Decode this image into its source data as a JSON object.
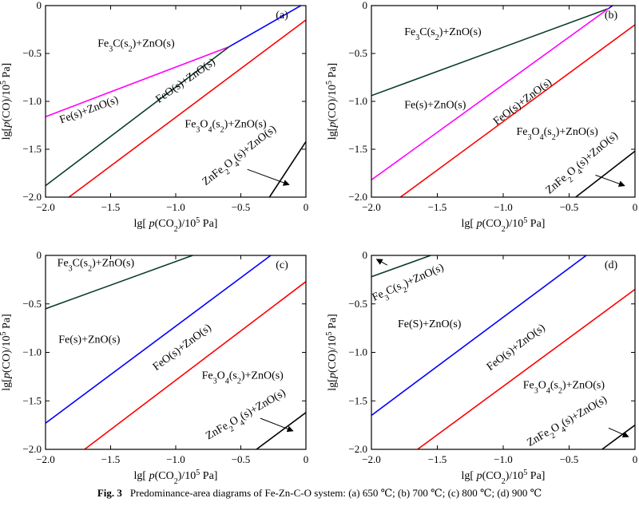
{
  "caption": {
    "label": "Fig. 3",
    "text": "Predominance-area diagrams of Fe-Zn-C-O system: (a) 650 ℃; (b) 700 ℃; (c) 800 ℃; (d) 900 ℃"
  },
  "colors": {
    "magenta": "#ff00ff",
    "dark_green": "#0b3d2a",
    "blue": "#0000ff",
    "red": "#ff0000",
    "black": "#000000"
  },
  "chart_data": [
    {
      "panel": "(a)",
      "type": "line",
      "xlabel": "lg[p(CO2)/10^5 Pa]",
      "ylabel": "lg[p(CO)/10^5 Pa]",
      "xlim": [
        -2.0,
        0
      ],
      "ylim": [
        -2.0,
        0
      ],
      "xticks": [
        "−2.0",
        "−1.5",
        "−1.0",
        "−0.5",
        "0"
      ],
      "yticks": [
        "0",
        "−0.5",
        "−1.0",
        "−1.5",
        "−2.0"
      ],
      "series": [
        {
          "color": "magenta",
          "x": [
            -2.0,
            -0.59
          ],
          "y": [
            -1.16,
            -0.43
          ]
        },
        {
          "color": "dark_green",
          "x": [
            -2.0,
            -0.59
          ],
          "y": [
            -1.88,
            -0.43
          ]
        },
        {
          "color": "blue",
          "x": [
            -0.59,
            0.0
          ],
          "y": [
            -0.43,
            0.03
          ]
        },
        {
          "color": "red",
          "x": [
            -1.82,
            0.0
          ],
          "y": [
            -2.0,
            -0.15
          ]
        },
        {
          "color": "black",
          "x": [
            -0.28,
            0.0
          ],
          "y": [
            -2.0,
            -1.42
          ]
        }
      ],
      "regions": [
        {
          "x": -1.6,
          "y": -0.43,
          "parts": [
            [
              "Fe",
              ""
            ],
            [
              "3",
              "sub"
            ],
            [
              "C(s",
              ""
            ],
            [
              "2",
              "sub"
            ],
            [
              ")+ZnO(s)",
              ""
            ]
          ],
          "rotate": 0
        },
        {
          "x": -1.88,
          "y": -1.23,
          "parts": [
            [
              "Fe(s)+ZnO(s)",
              ""
            ]
          ],
          "rotate": -20
        },
        {
          "x": -1.13,
          "y": -1.02,
          "parts": [
            [
              "FeO(s)+ZnO(s)",
              ""
            ]
          ],
          "rotate": -35
        },
        {
          "x": -0.93,
          "y": -1.27,
          "parts": [
            [
              "Fe",
              ""
            ],
            [
              "3",
              "sub"
            ],
            [
              "O",
              ""
            ],
            [
              "4",
              "sub"
            ],
            [
              "(s",
              ""
            ],
            [
              "2",
              "sub"
            ],
            [
              ")+ZnO(s)",
              ""
            ]
          ],
          "rotate": 0
        },
        {
          "x": -0.77,
          "y": -1.88,
          "parts": [
            [
              "ZnFe",
              ""
            ],
            [
              "2",
              "sub"
            ],
            [
              "O",
              ""
            ],
            [
              "4",
              "sub"
            ],
            [
              "(s)+ZnO(s)",
              ""
            ]
          ],
          "rotate": -38
        }
      ],
      "arrow": {
        "from": [
          -0.45,
          -1.71
        ],
        "to": [
          -0.13,
          -1.87
        ]
      }
    },
    {
      "panel": "(b)",
      "type": "line",
      "xlabel": "lg[p(CO2)/10^5 Pa]",
      "ylabel": "lg[p(CO)/10^5 Pa]",
      "xlim": [
        -2.0,
        0
      ],
      "ylim": [
        -2.0,
        0
      ],
      "xticks": [
        "−2.0",
        "−1.5",
        "−1.0",
        "−0.5",
        "0"
      ],
      "yticks": [
        "0",
        "−0.5",
        "−1.0",
        "−1.5",
        "−2.0"
      ],
      "series": [
        {
          "color": "dark_green",
          "x": [
            -2.0,
            -0.2
          ],
          "y": [
            -0.94,
            -0.03
          ]
        },
        {
          "color": "magenta",
          "x": [
            -2.0,
            -0.2
          ],
          "y": [
            -1.82,
            -0.03
          ]
        },
        {
          "color": "blue",
          "x": [
            -0.2,
            -0.17
          ],
          "y": [
            -0.03,
            0.0
          ]
        },
        {
          "color": "red",
          "x": [
            -1.78,
            0.0
          ],
          "y": [
            -2.0,
            -0.2
          ]
        },
        {
          "color": "black",
          "x": [
            -0.45,
            0.0
          ],
          "y": [
            -2.0,
            -1.52
          ]
        }
      ],
      "regions": [
        {
          "x": -1.75,
          "y": -0.31,
          "parts": [
            [
              "Fe",
              ""
            ],
            [
              "3",
              "sub"
            ],
            [
              "C(s",
              ""
            ],
            [
              "2",
              "sub"
            ],
            [
              ")+ZnO(s)",
              ""
            ]
          ],
          "rotate": 0
        },
        {
          "x": -1.75,
          "y": -1.07,
          "parts": [
            [
              "Fe(s)+ZnO(s)",
              ""
            ]
          ],
          "rotate": 0
        },
        {
          "x": -1.05,
          "y": -1.25,
          "parts": [
            [
              "FeO(s)+ZnO(s)",
              ""
            ]
          ],
          "rotate": -37
        },
        {
          "x": -0.9,
          "y": -1.35,
          "parts": [
            [
              "Fe",
              ""
            ],
            [
              "3",
              "sub"
            ],
            [
              "O",
              ""
            ],
            [
              "4",
              "sub"
            ],
            [
              "(s",
              ""
            ],
            [
              "2",
              "sub"
            ],
            [
              ")+ZnO(s)",
              ""
            ]
          ],
          "rotate": 0
        },
        {
          "x": -0.65,
          "y": -1.97,
          "parts": [
            [
              "ZnFe",
              ""
            ],
            [
              "2",
              "sub"
            ],
            [
              "O",
              ""
            ],
            [
              "4",
              "sub"
            ],
            [
              "(s)+ZnO(s)",
              ""
            ]
          ],
          "rotate": -40
        }
      ],
      "arrow": {
        "from": [
          -0.3,
          -1.77
        ],
        "to": [
          -0.08,
          -1.88
        ]
      }
    },
    {
      "panel": "(c)",
      "type": "line",
      "xlabel": "lg[p(CO2)/10^5 Pa]",
      "ylabel": "lg[p(CO)/10^5 Pa]",
      "xlim": [
        -2.0,
        0
      ],
      "ylim": [
        -2.0,
        0
      ],
      "xticks": [
        "−2.0",
        "−1.5",
        "−1.0",
        "−0.5",
        "0"
      ],
      "yticks": [
        "0",
        "−0.5",
        "−1.0",
        "−1.5",
        "−2.0"
      ],
      "series": [
        {
          "color": "dark_green",
          "x": [
            -2.0,
            -0.87
          ],
          "y": [
            -0.55,
            0.0
          ]
        },
        {
          "color": "blue",
          "x": [
            -2.0,
            -0.27
          ],
          "y": [
            -1.73,
            0.0
          ]
        },
        {
          "color": "red",
          "x": [
            -1.7,
            0.0
          ],
          "y": [
            -2.0,
            -0.27
          ]
        },
        {
          "color": "black",
          "x": [
            -0.38,
            0.0
          ],
          "y": [
            -2.0,
            -1.62
          ]
        }
      ],
      "regions": [
        {
          "x": -1.91,
          "y": -0.11,
          "parts": [
            [
              "Fe",
              ""
            ],
            [
              "3",
              "sub"
            ],
            [
              "C(s",
              ""
            ],
            [
              "2",
              "sub"
            ],
            [
              ")+ZnO(s)",
              ""
            ]
          ],
          "rotate": 0
        },
        {
          "x": -1.9,
          "y": -0.9,
          "parts": [
            [
              "Fe(s)+ZnO(s)",
              ""
            ]
          ],
          "rotate": 0
        },
        {
          "x": -1.15,
          "y": -1.19,
          "parts": [
            [
              "FeO(s)+ZnO(s)",
              ""
            ]
          ],
          "rotate": -37
        },
        {
          "x": -0.8,
          "y": -1.27,
          "parts": [
            [
              "Fe",
              ""
            ],
            [
              "3",
              "sub"
            ],
            [
              "O",
              ""
            ],
            [
              "4",
              "sub"
            ],
            [
              "(s",
              ""
            ],
            [
              "2",
              "sub"
            ],
            [
              ")+ZnO(s)",
              ""
            ]
          ],
          "rotate": 0
        },
        {
          "x": -0.75,
          "y": -1.9,
          "parts": [
            [
              "ZnFe",
              ""
            ],
            [
              "2",
              "sub"
            ],
            [
              "O",
              ""
            ],
            [
              "4",
              "sub"
            ],
            [
              "(s)+ZnO(s)",
              ""
            ]
          ],
          "rotate": -30
        }
      ],
      "arrow": {
        "from": [
          -0.35,
          -1.68
        ],
        "to": [
          -0.1,
          -1.81
        ]
      }
    },
    {
      "panel": "(d)",
      "type": "line",
      "xlabel": "lg[p(CO2)/10^5 Pa]",
      "ylabel": "lg[p(CO)/10^5 Pa]",
      "xlim": [
        -2.0,
        0
      ],
      "ylim": [
        -2.0,
        0
      ],
      "xticks": [
        "−2.0",
        "−1.5",
        "−1.0",
        "−0.5",
        "0"
      ],
      "yticks": [
        "0",
        "−0.5",
        "−1.0",
        "−1.5",
        "−2.0"
      ],
      "series": [
        {
          "color": "dark_green",
          "x": [
            -2.0,
            -1.55
          ],
          "y": [
            -0.22,
            0.0
          ]
        },
        {
          "color": "blue",
          "x": [
            -2.0,
            -0.37
          ],
          "y": [
            -1.65,
            0.0
          ]
        },
        {
          "color": "red",
          "x": [
            -1.65,
            0.0
          ],
          "y": [
            -2.0,
            -0.35
          ]
        },
        {
          "color": "black",
          "x": [
            -0.25,
            0.0
          ],
          "y": [
            -2.0,
            -1.75
          ]
        }
      ],
      "regions": [
        {
          "x": -1.98,
          "y": -0.47,
          "parts": [
            [
              "Fe",
              ""
            ],
            [
              "3",
              "sub"
            ],
            [
              "C(s",
              ""
            ],
            [
              "2",
              "sub"
            ],
            [
              ")+ZnO(s)",
              ""
            ]
          ],
          "rotate": -24
        },
        {
          "x": -1.8,
          "y": -0.74,
          "parts": [
            [
              "Fe(S)+ZnO(s)",
              ""
            ]
          ],
          "rotate": 0
        },
        {
          "x": -1.1,
          "y": -1.19,
          "parts": [
            [
              "FeO(s)+ZnO(s)",
              ""
            ]
          ],
          "rotate": -37
        },
        {
          "x": -0.85,
          "y": -1.37,
          "parts": [
            [
              "Fe",
              ""
            ],
            [
              "3",
              "sub"
            ],
            [
              "O",
              ""
            ],
            [
              "4",
              "sub"
            ],
            [
              "(s",
              ""
            ],
            [
              "2",
              "sub"
            ],
            [
              ")+ZnO(s)",
              ""
            ]
          ],
          "rotate": 0
        },
        {
          "x": -0.8,
          "y": -1.97,
          "parts": [
            [
              "ZnFe",
              ""
            ],
            [
              "2",
              "sub"
            ],
            [
              "O",
              ""
            ],
            [
              "4",
              "sub"
            ],
            [
              "(s)+ZnO(s)",
              ""
            ]
          ],
          "rotate": -30
        }
      ],
      "arrow": {
        "from": [
          -0.2,
          -1.78
        ],
        "to": [
          -0.05,
          -1.87
        ]
      },
      "arrow2": {
        "from": [
          -1.88,
          -0.1
        ],
        "to": [
          -1.96,
          -0.04
        ]
      }
    }
  ]
}
